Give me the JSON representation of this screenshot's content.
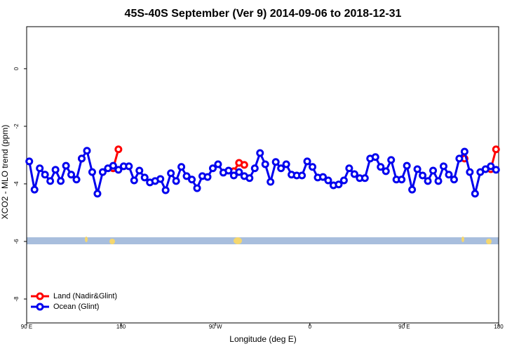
{
  "chart_data": {
    "type": "line",
    "title": "45S-40S September (Ver 9)   2014-09-06 to 2018-12-31",
    "x_label": "Longitude (deg E)",
    "y_label": "XCO2 - MLO trend (ppm)",
    "xlim": [
      90,
      540
    ],
    "xticks": [
      {
        "value": 90,
        "label": "90 E"
      },
      {
        "value": 180,
        "label": "180"
      },
      {
        "value": 270,
        "label": "90 W"
      },
      {
        "value": 360,
        "label": "0"
      },
      {
        "value": 450,
        "label": "90 E"
      },
      {
        "value": 540,
        "label": "180"
      }
    ],
    "ylim": [
      -8.83,
      1.46
    ],
    "yticks": [
      0,
      -2,
      -4,
      -6,
      -8
    ],
    "legend": "bottom-left",
    "series": [
      {
        "name": "Land (Nadir&Glint)",
        "color": "#ff0000",
        "x": [
          142.5,
          147.5,
          172.5,
          177.5,
          182.5,
          287.5,
          292.5,
          297.5,
          302.5,
          507.5,
          512.5,
          532.5,
          537.5
        ],
        "values": [
          -3.12,
          null,
          -3.46,
          -2.8,
          null,
          -3.56,
          -3.27,
          -3.34,
          null,
          -3.12,
          null,
          -3.49,
          -2.8
        ]
      },
      {
        "name": "Ocean (Glint)",
        "color": "#0000ee",
        "x": [
          92.5,
          97.5,
          102.5,
          107.5,
          112.5,
          117.5,
          122.5,
          127.5,
          132.5,
          137.5,
          142.5,
          147.5,
          152.5,
          157.5,
          162.5,
          167.5,
          172.5,
          177.5,
          182.5,
          187.5,
          192.5,
          197.5,
          202.5,
          207.5,
          212.5,
          217.5,
          222.5,
          227.5,
          232.5,
          237.5,
          242.5,
          247.5,
          252.5,
          257.5,
          262.5,
          267.5,
          272.5,
          277.5,
          282.5,
          287.5,
          292.5,
          297.5,
          302.5,
          307.5,
          312.5,
          317.5,
          322.5,
          327.5,
          332.5,
          337.5,
          342.5,
          347.5,
          352.5,
          357.5,
          362.5,
          367.5,
          372.5,
          377.5,
          382.5,
          387.5,
          392.5,
          397.5,
          402.5,
          407.5,
          412.5,
          417.5,
          422.5,
          427.5,
          432.5,
          437.5,
          442.5,
          447.5,
          452.5,
          457.5,
          462.5,
          467.5,
          472.5,
          477.5,
          482.5,
          487.5,
          492.5,
          497.5,
          502.5,
          507.5,
          512.5,
          517.5,
          522.5,
          527.5,
          532.5,
          537.5
        ],
        "values": [
          -3.22,
          -4.2,
          -3.46,
          -3.68,
          -3.9,
          -3.51,
          -3.9,
          -3.37,
          -3.68,
          -3.85,
          -3.12,
          -2.85,
          -3.59,
          -4.34,
          -3.59,
          -3.46,
          -3.37,
          -3.51,
          -3.39,
          -3.39,
          -3.88,
          -3.54,
          -3.78,
          -3.95,
          -3.9,
          -3.83,
          -4.22,
          -3.63,
          -3.9,
          -3.41,
          -3.73,
          -3.85,
          -4.15,
          -3.73,
          -3.76,
          -3.46,
          -3.32,
          -3.61,
          -3.54,
          -3.71,
          -3.59,
          -3.73,
          -3.8,
          -3.46,
          -2.93,
          -3.32,
          -3.93,
          -3.24,
          -3.46,
          -3.32,
          -3.68,
          -3.71,
          -3.71,
          -3.22,
          -3.41,
          -3.78,
          -3.76,
          -3.88,
          -4.05,
          -4.02,
          -3.88,
          -3.46,
          -3.66,
          -3.8,
          -3.8,
          -3.12,
          -3.07,
          -3.41,
          -3.56,
          -3.17,
          -3.85,
          -3.85,
          -3.37,
          -4.2,
          -3.49,
          -3.71,
          -3.9,
          -3.54,
          -3.9,
          -3.39,
          -3.68,
          -3.85,
          -3.12,
          -2.88,
          -3.59,
          -4.34,
          -3.59,
          -3.49,
          -3.39,
          -3.51
        ]
      }
    ]
  }
}
